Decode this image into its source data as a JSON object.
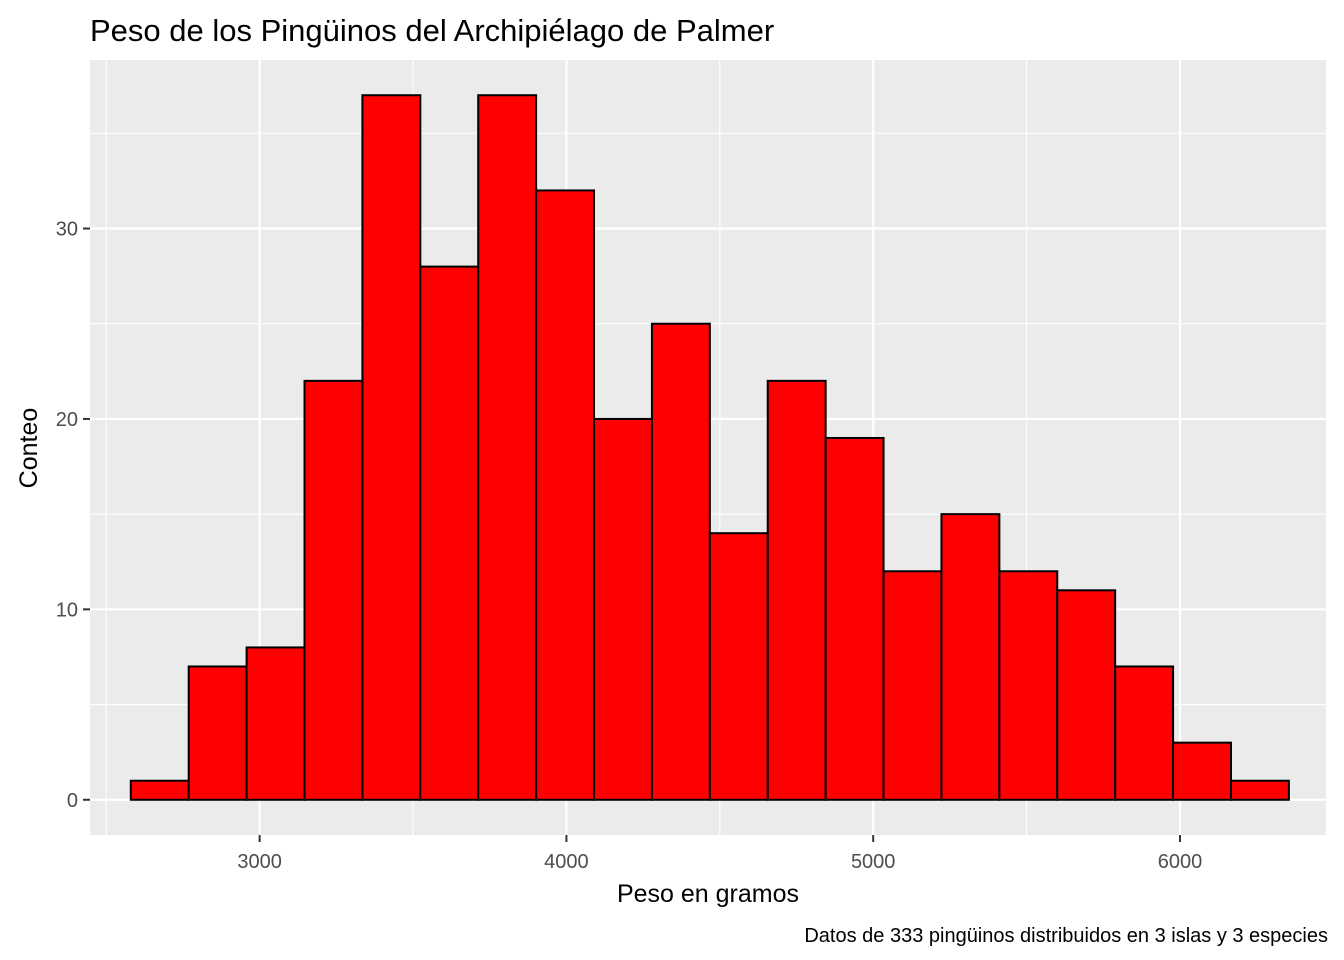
{
  "chart_data": {
    "type": "bar",
    "title": "Peso de los Pingüinos del Archipiélago de Palmer",
    "xlabel": "Peso en gramos",
    "ylabel": "Conteo",
    "caption": "Datos de 333 pingüinos distribuidos en 3 islas y 3 especies",
    "xlim": [
      2447,
      6476
    ],
    "ylim": [
      -1.85,
      38.85
    ],
    "x_ticks": [
      3000,
      4000,
      5000,
      6000
    ],
    "y_ticks": [
      0,
      10,
      20,
      30
    ],
    "grid": true,
    "bin_edges": [
      2580,
      2768.75,
      2957.5,
      3146.25,
      3335,
      3523.75,
      3712.5,
      3901.25,
      4090,
      4278.75,
      4467.5,
      4656.25,
      4845,
      5033.75,
      5222.5,
      5411.25,
      5600,
      5788.75,
      5977.5,
      6166.25,
      6355
    ],
    "values": [
      1,
      7,
      8,
      22,
      37,
      28,
      37,
      32,
      20,
      25,
      14,
      22,
      19,
      12,
      15,
      12,
      11,
      7,
      3,
      1
    ],
    "colors": {
      "bar_fill": "#ff0000",
      "bar_outline": "#000000",
      "panel_background": "#ebebeb",
      "grid_major": "#ffffff",
      "tick_label": "#4d4d4d"
    }
  }
}
